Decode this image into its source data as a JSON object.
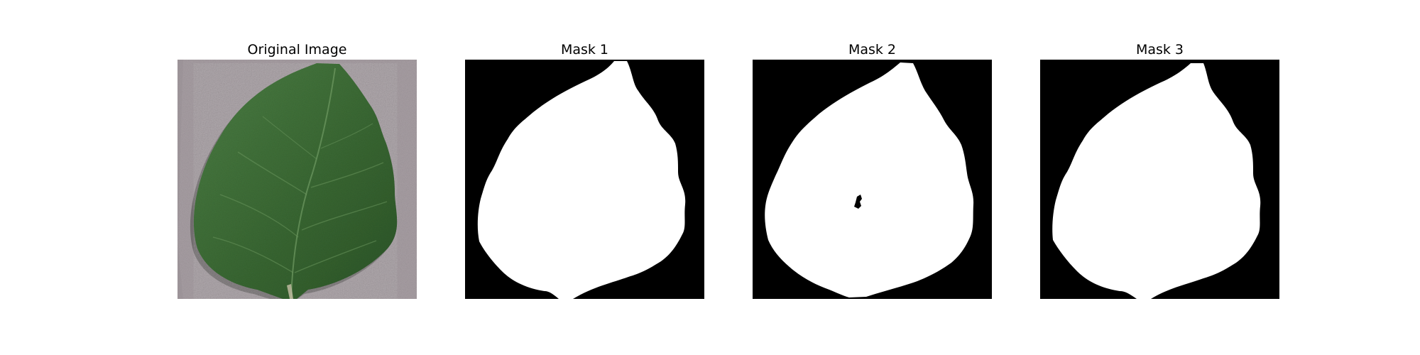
{
  "figure": {
    "panels": [
      {
        "title": "Original Image",
        "type": "photo",
        "subject": "green leaf on gray textured background"
      },
      {
        "title": "Mask 1",
        "type": "binary-mask"
      },
      {
        "title": "Mask 2",
        "type": "binary-mask",
        "note": "small hole inside mask"
      },
      {
        "title": "Mask 3",
        "type": "binary-mask"
      }
    ]
  },
  "colors": {
    "background": "#ffffff",
    "mask_foreground": "#ffffff",
    "mask_background": "#000000",
    "leaf_dark": "#2f5a2a",
    "leaf_mid": "#3f6f36",
    "leaf_light": "#5b8a50",
    "ground": "#a79ea3",
    "ground_dark": "#8f868b"
  }
}
